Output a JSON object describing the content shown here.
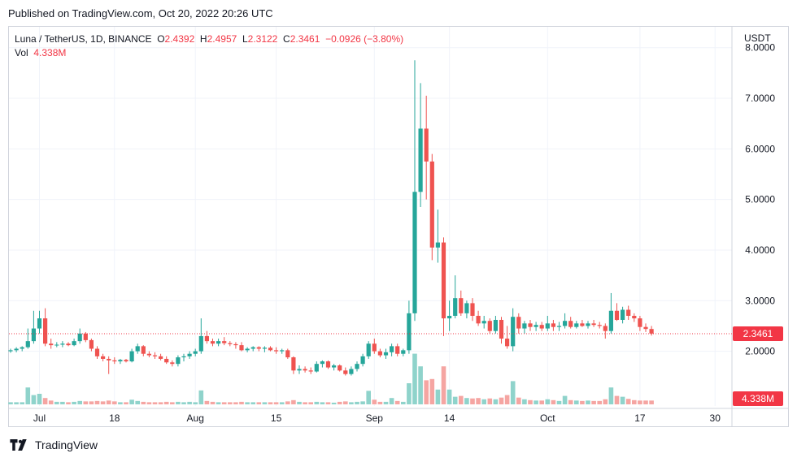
{
  "header": {
    "published": "Published on TradingView.com, Oct 20, 2022 20:26 UTC"
  },
  "legend": {
    "symbol": "Luna / TetherUS, 1D, BINANCE",
    "o_label": "O",
    "o": "2.4392",
    "h_label": "H",
    "h": "2.4957",
    "l_label": "L",
    "l": "2.3122",
    "c_label": "C",
    "c": "2.3461",
    "change": "−0.0926 (−3.80%)",
    "vol_label": "Vol",
    "vol": "4.338M"
  },
  "axis": {
    "currency": "USDT"
  },
  "footer": {
    "brand": "TradingView"
  },
  "colors": {
    "up": "#26a69a",
    "down": "#ef5350",
    "vol_up": "#8fd3cb",
    "vol_down": "#f5a5a2",
    "grid": "#f0f3fa",
    "last_price": "#f23645"
  },
  "chart_data": {
    "type": "candlestick",
    "ylim": [
      1.4,
      8.3
    ],
    "y_ticks": [
      "2.0000",
      "3.0000",
      "4.0000",
      "5.0000",
      "6.0000",
      "7.0000",
      "8.0000"
    ],
    "x_ticks": [
      {
        "label": "Jul",
        "day": 5
      },
      {
        "label": "18",
        "day": 18
      },
      {
        "label": "Aug",
        "day": 32
      },
      {
        "label": "15",
        "day": 46
      },
      {
        "label": "Sep",
        "day": 63
      },
      {
        "label": "14",
        "day": 76
      },
      {
        "label": "Oct",
        "day": 93
      },
      {
        "label": "17",
        "day": 109
      },
      {
        "label": "30",
        "day": 122
      }
    ],
    "last_price": "2.3461",
    "last_volume": "4.338M",
    "candles": [
      [
        2.0,
        2.05,
        1.97,
        2.02,
        0.5
      ],
      [
        2.02,
        2.08,
        1.98,
        2.05,
        0.5
      ],
      [
        2.05,
        2.1,
        2.0,
        2.08,
        0.5
      ],
      [
        2.08,
        2.45,
        2.05,
        2.2,
        4.0
      ],
      [
        2.2,
        2.8,
        2.15,
        2.45,
        2.2
      ],
      [
        2.45,
        2.8,
        2.35,
        2.65,
        2.5
      ],
      [
        2.65,
        2.85,
        2.1,
        2.15,
        1.5
      ],
      [
        2.15,
        2.25,
        2.05,
        2.12,
        0.9
      ],
      [
        2.12,
        2.18,
        2.08,
        2.13,
        0.6
      ],
      [
        2.13,
        2.2,
        2.08,
        2.15,
        0.6
      ],
      [
        2.15,
        2.18,
        2.1,
        2.12,
        0.5
      ],
      [
        2.12,
        2.25,
        2.1,
        2.2,
        0.6
      ],
      [
        2.2,
        2.45,
        2.15,
        2.35,
        0.8
      ],
      [
        2.35,
        2.38,
        2.18,
        2.22,
        0.7
      ],
      [
        2.22,
        2.25,
        2.0,
        2.05,
        0.7
      ],
      [
        2.05,
        2.1,
        1.85,
        1.9,
        0.8
      ],
      [
        1.9,
        1.95,
        1.8,
        1.85,
        0.7
      ],
      [
        1.85,
        1.9,
        1.55,
        1.82,
        0.9
      ],
      [
        1.82,
        1.88,
        1.75,
        1.8,
        0.7
      ],
      [
        1.8,
        1.85,
        1.75,
        1.83,
        0.5
      ],
      [
        1.83,
        1.85,
        1.78,
        1.8,
        0.5
      ],
      [
        1.8,
        2.05,
        1.78,
        2.0,
        1.1
      ],
      [
        2.0,
        2.15,
        1.95,
        2.1,
        0.8
      ],
      [
        2.1,
        2.12,
        1.9,
        1.95,
        0.6
      ],
      [
        1.95,
        2.0,
        1.88,
        1.92,
        0.5
      ],
      [
        1.92,
        1.98,
        1.85,
        1.9,
        0.5
      ],
      [
        1.9,
        1.95,
        1.82,
        1.85,
        0.5
      ],
      [
        1.85,
        1.9,
        1.75,
        1.78,
        0.6
      ],
      [
        1.78,
        1.82,
        1.7,
        1.75,
        0.5
      ],
      [
        1.75,
        1.92,
        1.7,
        1.88,
        0.6
      ],
      [
        1.88,
        1.95,
        1.8,
        1.9,
        0.5
      ],
      [
        1.9,
        2.0,
        1.85,
        1.95,
        0.6
      ],
      [
        1.95,
        2.05,
        1.9,
        2.0,
        0.5
      ],
      [
        2.0,
        2.65,
        1.95,
        2.3,
        3.3
      ],
      [
        2.3,
        2.4,
        2.15,
        2.2,
        0.8
      ],
      [
        2.2,
        2.25,
        2.1,
        2.15,
        0.6
      ],
      [
        2.15,
        2.25,
        2.1,
        2.2,
        0.5
      ],
      [
        2.2,
        2.28,
        2.12,
        2.16,
        0.5
      ],
      [
        2.16,
        2.2,
        2.1,
        2.14,
        0.5
      ],
      [
        2.14,
        2.18,
        2.05,
        2.12,
        0.5
      ],
      [
        2.12,
        2.18,
        2.0,
        2.02,
        0.6
      ],
      [
        2.02,
        2.08,
        1.98,
        2.05,
        0.5
      ],
      [
        2.05,
        2.1,
        2.0,
        2.08,
        0.5
      ],
      [
        2.08,
        2.1,
        2.0,
        2.05,
        0.5
      ],
      [
        2.05,
        2.1,
        1.98,
        2.07,
        0.5
      ],
      [
        2.07,
        2.1,
        2.0,
        2.02,
        0.5
      ],
      [
        2.02,
        2.08,
        1.95,
        2.0,
        0.5
      ],
      [
        2.0,
        2.05,
        1.95,
        2.02,
        0.5
      ],
      [
        2.02,
        2.05,
        1.85,
        1.88,
        0.7
      ],
      [
        1.88,
        1.9,
        1.55,
        1.62,
        1.0
      ],
      [
        1.62,
        1.72,
        1.55,
        1.65,
        0.6
      ],
      [
        1.65,
        1.7,
        1.58,
        1.62,
        0.5
      ],
      [
        1.62,
        1.68,
        1.55,
        1.6,
        0.5
      ],
      [
        1.6,
        1.8,
        1.58,
        1.75,
        0.6
      ],
      [
        1.75,
        1.82,
        1.68,
        1.8,
        0.5
      ],
      [
        1.8,
        1.82,
        1.65,
        1.68,
        0.5
      ],
      [
        1.68,
        1.75,
        1.62,
        1.72,
        0.4
      ],
      [
        1.72,
        1.74,
        1.6,
        1.62,
        0.6
      ],
      [
        1.62,
        1.68,
        1.52,
        1.55,
        0.7
      ],
      [
        1.55,
        1.7,
        1.52,
        1.65,
        0.5
      ],
      [
        1.65,
        1.8,
        1.6,
        1.75,
        0.6
      ],
      [
        1.75,
        1.95,
        1.7,
        1.9,
        0.7
      ],
      [
        1.9,
        2.2,
        1.85,
        2.15,
        3.2
      ],
      [
        2.15,
        2.25,
        1.95,
        2.0,
        1.1
      ],
      [
        2.0,
        2.05,
        1.88,
        1.92,
        0.6
      ],
      [
        1.92,
        2.05,
        1.85,
        1.98,
        0.6
      ],
      [
        1.98,
        2.15,
        1.9,
        2.1,
        1.5
      ],
      [
        2.1,
        2.15,
        1.9,
        1.95,
        0.8
      ],
      [
        1.95,
        2.05,
        1.9,
        2.02,
        0.6
      ],
      [
        2.02,
        3.0,
        1.95,
        2.75,
        5.0
      ],
      [
        2.75,
        7.75,
        2.6,
        5.15,
        12.0
      ],
      [
        5.15,
        7.3,
        4.85,
        6.4,
        9.0
      ],
      [
        6.4,
        7.05,
        5.0,
        5.75,
        5.7
      ],
      [
        5.75,
        5.9,
        3.8,
        4.05,
        6.0
      ],
      [
        4.05,
        4.8,
        3.75,
        4.15,
        3.5
      ],
      [
        4.15,
        4.25,
        2.3,
        2.65,
        9.0
      ],
      [
        2.65,
        3.0,
        2.4,
        2.7,
        3.5
      ],
      [
        2.7,
        3.5,
        2.65,
        3.05,
        1.8
      ],
      [
        3.05,
        3.2,
        2.7,
        2.75,
        2.0
      ],
      [
        2.75,
        3.0,
        2.65,
        2.95,
        1.5
      ],
      [
        2.95,
        3.05,
        2.6,
        2.7,
        1.4
      ],
      [
        2.7,
        2.8,
        2.5,
        2.55,
        1.5
      ],
      [
        2.55,
        2.7,
        2.45,
        2.6,
        1.2
      ],
      [
        2.6,
        2.65,
        2.35,
        2.4,
        1.4
      ],
      [
        2.4,
        2.7,
        2.35,
        2.62,
        1.2
      ],
      [
        2.62,
        2.68,
        2.15,
        2.25,
        1.6
      ],
      [
        2.25,
        2.5,
        2.05,
        2.1,
        2.2
      ],
      [
        2.1,
        2.85,
        2.0,
        2.68,
        5.5
      ],
      [
        2.68,
        2.75,
        2.35,
        2.45,
        1.6
      ],
      [
        2.45,
        2.6,
        2.35,
        2.55,
        1.2
      ],
      [
        2.55,
        2.62,
        2.4,
        2.48,
        1.0
      ],
      [
        2.48,
        2.58,
        2.4,
        2.52,
        0.9
      ],
      [
        2.52,
        2.58,
        2.4,
        2.45,
        0.9
      ],
      [
        2.45,
        2.7,
        2.4,
        2.55,
        1.2
      ],
      [
        2.55,
        2.62,
        2.4,
        2.48,
        1.0
      ],
      [
        2.48,
        2.58,
        2.4,
        2.5,
        0.8
      ],
      [
        2.5,
        2.75,
        2.45,
        2.6,
        2.0
      ],
      [
        2.6,
        2.68,
        2.45,
        2.48,
        1.0
      ],
      [
        2.48,
        2.6,
        2.45,
        2.55,
        0.9
      ],
      [
        2.55,
        2.62,
        2.48,
        2.5,
        0.8
      ],
      [
        2.5,
        2.6,
        2.45,
        2.55,
        0.9
      ],
      [
        2.55,
        2.62,
        2.48,
        2.52,
        0.8
      ],
      [
        2.52,
        2.58,
        2.45,
        2.5,
        0.8
      ],
      [
        2.5,
        2.55,
        2.25,
        2.4,
        1.2
      ],
      [
        2.4,
        3.15,
        2.35,
        2.8,
        4.0
      ],
      [
        2.8,
        2.95,
        2.6,
        2.62,
        2.0
      ],
      [
        2.62,
        2.88,
        2.55,
        2.82,
        1.8
      ],
      [
        2.82,
        2.9,
        2.62,
        2.7,
        1.3
      ],
      [
        2.7,
        2.75,
        2.58,
        2.65,
        1.0
      ],
      [
        2.65,
        2.7,
        2.4,
        2.48,
        0.9
      ],
      [
        2.48,
        2.55,
        2.38,
        2.44,
        0.9
      ],
      [
        2.44,
        2.5,
        2.31,
        2.35,
        0.9
      ]
    ]
  }
}
